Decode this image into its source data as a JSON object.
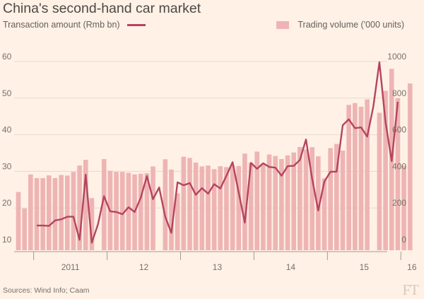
{
  "title": "China's second-hand car market",
  "legend": {
    "line_label": "Transaction amount (Rmb bn)",
    "bar_label": "Trading volume ('000 units)"
  },
  "source": "Sources: Wind Info; Caam",
  "logo": "FT",
  "colors": {
    "background": "#fff1e5",
    "bar": "#eeb4b4",
    "line": "#b5445f",
    "axis": "#a59a91",
    "grid": "#e6d9ce"
  },
  "chart_data": {
    "type": "bar+line",
    "title": "China's second-hand car market",
    "x_tick_labels": [
      "2011",
      "12",
      "13",
      "14",
      "15",
      "16"
    ],
    "left_axis": {
      "label": "Transaction amount (Rmb bn)",
      "range": [
        10,
        60
      ],
      "ticks": [
        10,
        20,
        30,
        40,
        50,
        60
      ]
    },
    "right_axis": {
      "label": "Trading volume ('000 units)",
      "range": [
        0,
        1000
      ],
      "ticks": [
        0,
        200,
        400,
        600,
        800,
        1000
      ]
    },
    "series": [
      {
        "name": "Trading volume ('000 units)",
        "type": "bar",
        "axis": "right",
        "start": "2010-10",
        "values": [
          287,
          197,
          383,
          363,
          363,
          378,
          363,
          380,
          377,
          397,
          432,
          463,
          254,
          467,
          403,
          397,
          397,
          392,
          383,
          387,
          390,
          427,
          466,
          410,
          280,
          480,
          473,
          448,
          427,
          432,
          412,
          428,
          423,
          432,
          429,
          497,
          448,
          508,
          443,
          492,
          484,
          467,
          487,
          503,
          533,
          520,
          532,
          482,
          362,
          527,
          550,
          513,
          763,
          773,
          753,
          793,
          720,
          840,
          960,
          800,
          430,
          880
        ],
        "missing_periods": [
          "2011-11",
          "2012-09",
          "2015-08"
        ]
      },
      {
        "name": "Transaction amount (Rmb bn)",
        "type": "line",
        "axis": "left",
        "start": "2011-01",
        "values": [
          15.2,
          15.2,
          15.1,
          16.6,
          16.9,
          17.6,
          17.6,
          11.3,
          29.1,
          10.5,
          15.5,
          23.2,
          19.1,
          18.9,
          18.3,
          20.2,
          18.9,
          22.8,
          28.7,
          22.4,
          25.6,
          17.6,
          13.2,
          27.0,
          26.2,
          26.8,
          23.6,
          25.4,
          23.9,
          26.5,
          25.3,
          28.8,
          32.5,
          24.2,
          16.0,
          32.3,
          30.7,
          32.2,
          31.2,
          31.0,
          28.8,
          31.4,
          31.5,
          33.1,
          38.7,
          28.0,
          19.3,
          27.2,
          29.9,
          29.9,
          42.6,
          44.2,
          41.8,
          42.0,
          39.5,
          47.7,
          59.8,
          43.4,
          32.8,
          49.0
        ]
      }
    ]
  }
}
